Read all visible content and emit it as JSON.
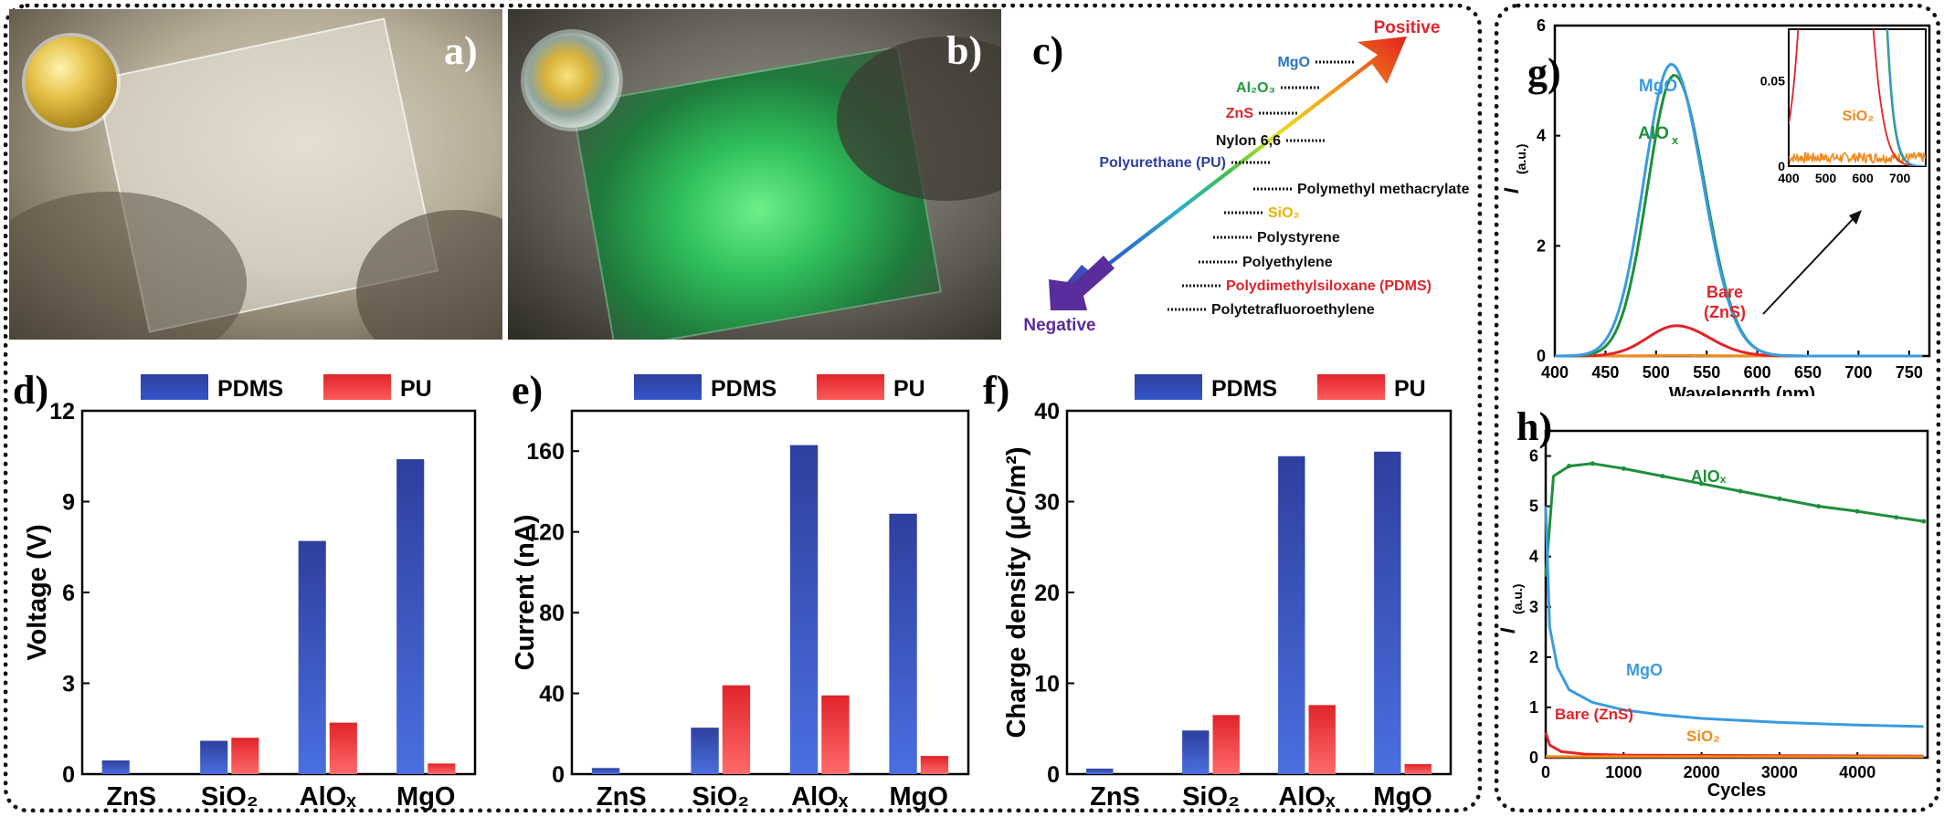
{
  "panels": {
    "a": "a)",
    "b": "b)",
    "c": "c)",
    "d": "d)",
    "e": "e)",
    "f": "f)",
    "g": "g)",
    "h": "h)"
  },
  "colors": {
    "pdms": "#2e3f9e",
    "pu": "#e0242a",
    "mgo": "#3b9be0",
    "alox": "#1f8f3a",
    "bare": "#e0242a",
    "sio2": "#f08a1c"
  },
  "series_scale": {
    "positive_label": "Positive",
    "negative_label": "Negative",
    "items": [
      {
        "text": "MgO",
        "color": "#2a74c2"
      },
      {
        "text": "Al₂O₃",
        "color": "#1f9a3a"
      },
      {
        "text": "ZnS",
        "color": "#e0242a"
      },
      {
        "text": "Nylon 6,6",
        "color": "#111111"
      },
      {
        "text": "Polyurethane (PU)",
        "color": "#2e3f9e"
      },
      {
        "text": "Polymethyl methacrylate",
        "color": "#111111"
      },
      {
        "text": "SiO₂",
        "color": "#e8b400"
      },
      {
        "text": "Polystyrene",
        "color": "#111111"
      },
      {
        "text": "Polyethylene",
        "color": "#111111"
      },
      {
        "text": "Polydimethylsiloxane (PDMS)",
        "color": "#e0242a"
      },
      {
        "text": "Polytetrafluoroethylene",
        "color": "#111111"
      }
    ]
  },
  "chart_data": [
    {
      "id": "d",
      "type": "bar",
      "categories": [
        "ZnS",
        "SiO₂",
        "AlOₓ",
        "MgO"
      ],
      "series": [
        {
          "name": "PDMS",
          "values": [
            0.45,
            1.1,
            7.7,
            10.4
          ]
        },
        {
          "name": "PU",
          "values": [
            0,
            1.2,
            1.7,
            0.35
          ]
        }
      ],
      "ylabel": "Voltage (V)",
      "ylim": [
        0,
        12
      ],
      "yticks": [
        0,
        3,
        6,
        9,
        12
      ],
      "legend": "top"
    },
    {
      "id": "e",
      "type": "bar",
      "categories": [
        "ZnS",
        "SiO₂",
        "AlOₓ",
        "MgO"
      ],
      "series": [
        {
          "name": "PDMS",
          "values": [
            3,
            23,
            163,
            129
          ]
        },
        {
          "name": "PU",
          "values": [
            0,
            44,
            39,
            9
          ]
        }
      ],
      "ylabel": "Current (nA)",
      "ylim": [
        0,
        180
      ],
      "yticks": [
        0,
        40,
        80,
        120,
        160
      ],
      "legend": "top"
    },
    {
      "id": "f",
      "type": "bar",
      "categories": [
        "ZnS",
        "SiO₂",
        "AlOₓ",
        "MgO"
      ],
      "series": [
        {
          "name": "PDMS",
          "values": [
            0.6,
            4.8,
            35,
            35.5
          ]
        },
        {
          "name": "PU",
          "values": [
            0,
            6.5,
            7.6,
            1.1
          ]
        }
      ],
      "ylabel": "Charge density (μC/m²)",
      "ylim": [
        0,
        40
      ],
      "yticks": [
        0,
        10,
        20,
        30,
        40
      ],
      "legend": "top"
    },
    {
      "id": "g",
      "type": "line",
      "xlabel": "Wavelength (nm)",
      "ylabel": "I (a.u.)",
      "xlim": [
        400,
        770
      ],
      "ylim": [
        0,
        6
      ],
      "xticks": [
        400,
        450,
        500,
        550,
        600,
        650,
        700,
        750
      ],
      "yticks": [
        0,
        2,
        4,
        6
      ],
      "series": [
        {
          "name": "MgO",
          "peak_x": 515,
          "peak_y": 5.3,
          "width": 38
        },
        {
          "name": "AlOx",
          "peak_x": 518,
          "peak_y": 5.1,
          "width": 37
        },
        {
          "name": "Bare (ZnS)",
          "peak_x": 520,
          "peak_y": 0.55,
          "width": 40
        },
        {
          "name": "SiO2",
          "peak_x": 520,
          "peak_y": 0.01,
          "width": 40
        }
      ],
      "inset": {
        "xlim": [
          400,
          770
        ],
        "ylim": [
          0,
          0.08
        ],
        "xticks": [
          400,
          500,
          600,
          700
        ],
        "yticks": [
          0,
          0.05
        ],
        "labels": [
          "SiO₂"
        ]
      }
    },
    {
      "id": "h",
      "type": "line",
      "xlabel": "Cycles",
      "ylabel": "I (a.u.)",
      "xlim": [
        0,
        4900
      ],
      "ylim": [
        0,
        6.5
      ],
      "xticks": [
        0,
        1000,
        2000,
        3000,
        4000
      ],
      "yticks": [
        0,
        1,
        2,
        3,
        4,
        5,
        6
      ],
      "series": [
        {
          "name": "AlOx",
          "x": [
            0,
            100,
            300,
            600,
            1000,
            1500,
            2000,
            2500,
            3000,
            3500,
            4000,
            4500,
            4850
          ],
          "y": [
            3.6,
            5.6,
            5.8,
            5.85,
            5.75,
            5.6,
            5.45,
            5.3,
            5.15,
            5.0,
            4.9,
            4.78,
            4.7
          ]
        },
        {
          "name": "MgO",
          "x": [
            0,
            50,
            150,
            300,
            600,
            1000,
            1500,
            2000,
            3000,
            4000,
            4850
          ],
          "y": [
            5.0,
            2.6,
            1.8,
            1.35,
            1.1,
            0.95,
            0.85,
            0.78,
            0.7,
            0.65,
            0.62
          ]
        },
        {
          "name": "Bare (ZnS)",
          "x": [
            0,
            50,
            200,
            500,
            1000,
            4850
          ],
          "y": [
            0.5,
            0.25,
            0.12,
            0.07,
            0.05,
            0.03
          ]
        },
        {
          "name": "SiO2",
          "x": [
            0,
            4850
          ],
          "y": [
            0.02,
            0.02
          ]
        }
      ]
    }
  ],
  "labels": {
    "g_mgo": "MgO",
    "g_alox_main": "AlO",
    "g_alox_sub": "x",
    "g_bare": "Bare",
    "g_zns": "(ZnS)",
    "g_sio2": "SiO₂",
    "h_alox": "AlOₓ",
    "h_mgo": "MgO",
    "h_bare": "Bare (ZnS)",
    "h_sio2": "SiO₂"
  }
}
